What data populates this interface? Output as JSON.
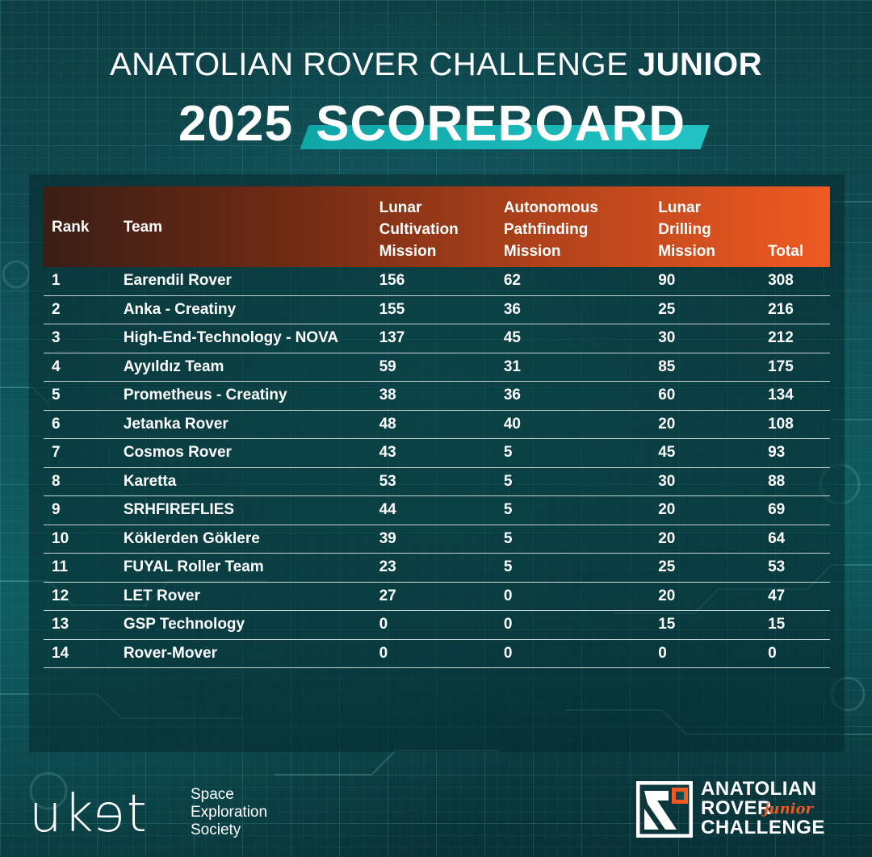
{
  "header": {
    "line1_regular": "ANATOLIAN ROVER CHALLENGE",
    "line1_bold": "JUNIOR",
    "line2_year": "2025",
    "line2_word": "SCOREBOARD"
  },
  "table": {
    "columns": {
      "rank": "Rank",
      "team": "Team",
      "mission1": [
        "Lunar",
        "Cultivation",
        "Mission"
      ],
      "mission2": [
        "Autonomous",
        "Pathfinding",
        "Mission"
      ],
      "mission3": [
        "Lunar",
        "Drilling",
        "Mission"
      ],
      "total": "Total"
    },
    "rows": [
      {
        "rank": "1",
        "team": "Earendil Rover",
        "m1": "156",
        "m2": "62",
        "m3": "90",
        "total": "308"
      },
      {
        "rank": "2",
        "team": "Anka - Creatiny",
        "m1": "155",
        "m2": "36",
        "m3": "25",
        "total": "216"
      },
      {
        "rank": "3",
        "team": "High-End-Technology - NOVA",
        "m1": "137",
        "m2": "45",
        "m3": "30",
        "total": "212"
      },
      {
        "rank": "4",
        "team": "Ayyıldız Team",
        "m1": "59",
        "m2": "31",
        "m3": "85",
        "total": "175"
      },
      {
        "rank": "5",
        "team": "Prometheus - Creatiny",
        "m1": "38",
        "m2": "36",
        "m3": "60",
        "total": "134"
      },
      {
        "rank": "6",
        "team": "Jetanka Rover",
        "m1": "48",
        "m2": "40",
        "m3": "20",
        "total": "108"
      },
      {
        "rank": "7",
        "team": "Cosmos Rover",
        "m1": "43",
        "m2": "5",
        "m3": "45",
        "total": "93"
      },
      {
        "rank": "8",
        "team": "Karetta",
        "m1": "53",
        "m2": "5",
        "m3": "30",
        "total": "88"
      },
      {
        "rank": "9",
        "team": "SRHFIREFLIES",
        "m1": "44",
        "m2": "5",
        "m3": "20",
        "total": "69"
      },
      {
        "rank": "10",
        "team": "Köklerden Göklere",
        "m1": "39",
        "m2": "5",
        "m3": "20",
        "total": "64"
      },
      {
        "rank": "11",
        "team": "FUYAL Roller Team",
        "m1": "23",
        "m2": "5",
        "m3": "25",
        "total": "53"
      },
      {
        "rank": "12",
        "team": "LET Rover",
        "m1": "27",
        "m2": "0",
        "m3": "20",
        "total": "47"
      },
      {
        "rank": "13",
        "team": "GSP Technology",
        "m1": "0",
        "m2": "0",
        "m3": "15",
        "total": "15"
      },
      {
        "rank": "14",
        "team": "Rover-Mover",
        "m1": "0",
        "m2": "0",
        "m3": "0",
        "total": "0"
      }
    ]
  },
  "footer": {
    "org_logo": "ukɘt",
    "org_name": [
      "Space",
      "Exploration",
      "Society"
    ],
    "arc_logo_lines": [
      "ANATOLIAN",
      "ROVER",
      "CHALLENGE"
    ],
    "arc_logo_junior": "junior"
  },
  "colors": {
    "background": "#0f4c52",
    "header_gradient_start": "#3a1d15",
    "header_gradient_end": "#f05a22",
    "accent_teal": "#23c3c3",
    "accent_orange": "#f05a22"
  }
}
